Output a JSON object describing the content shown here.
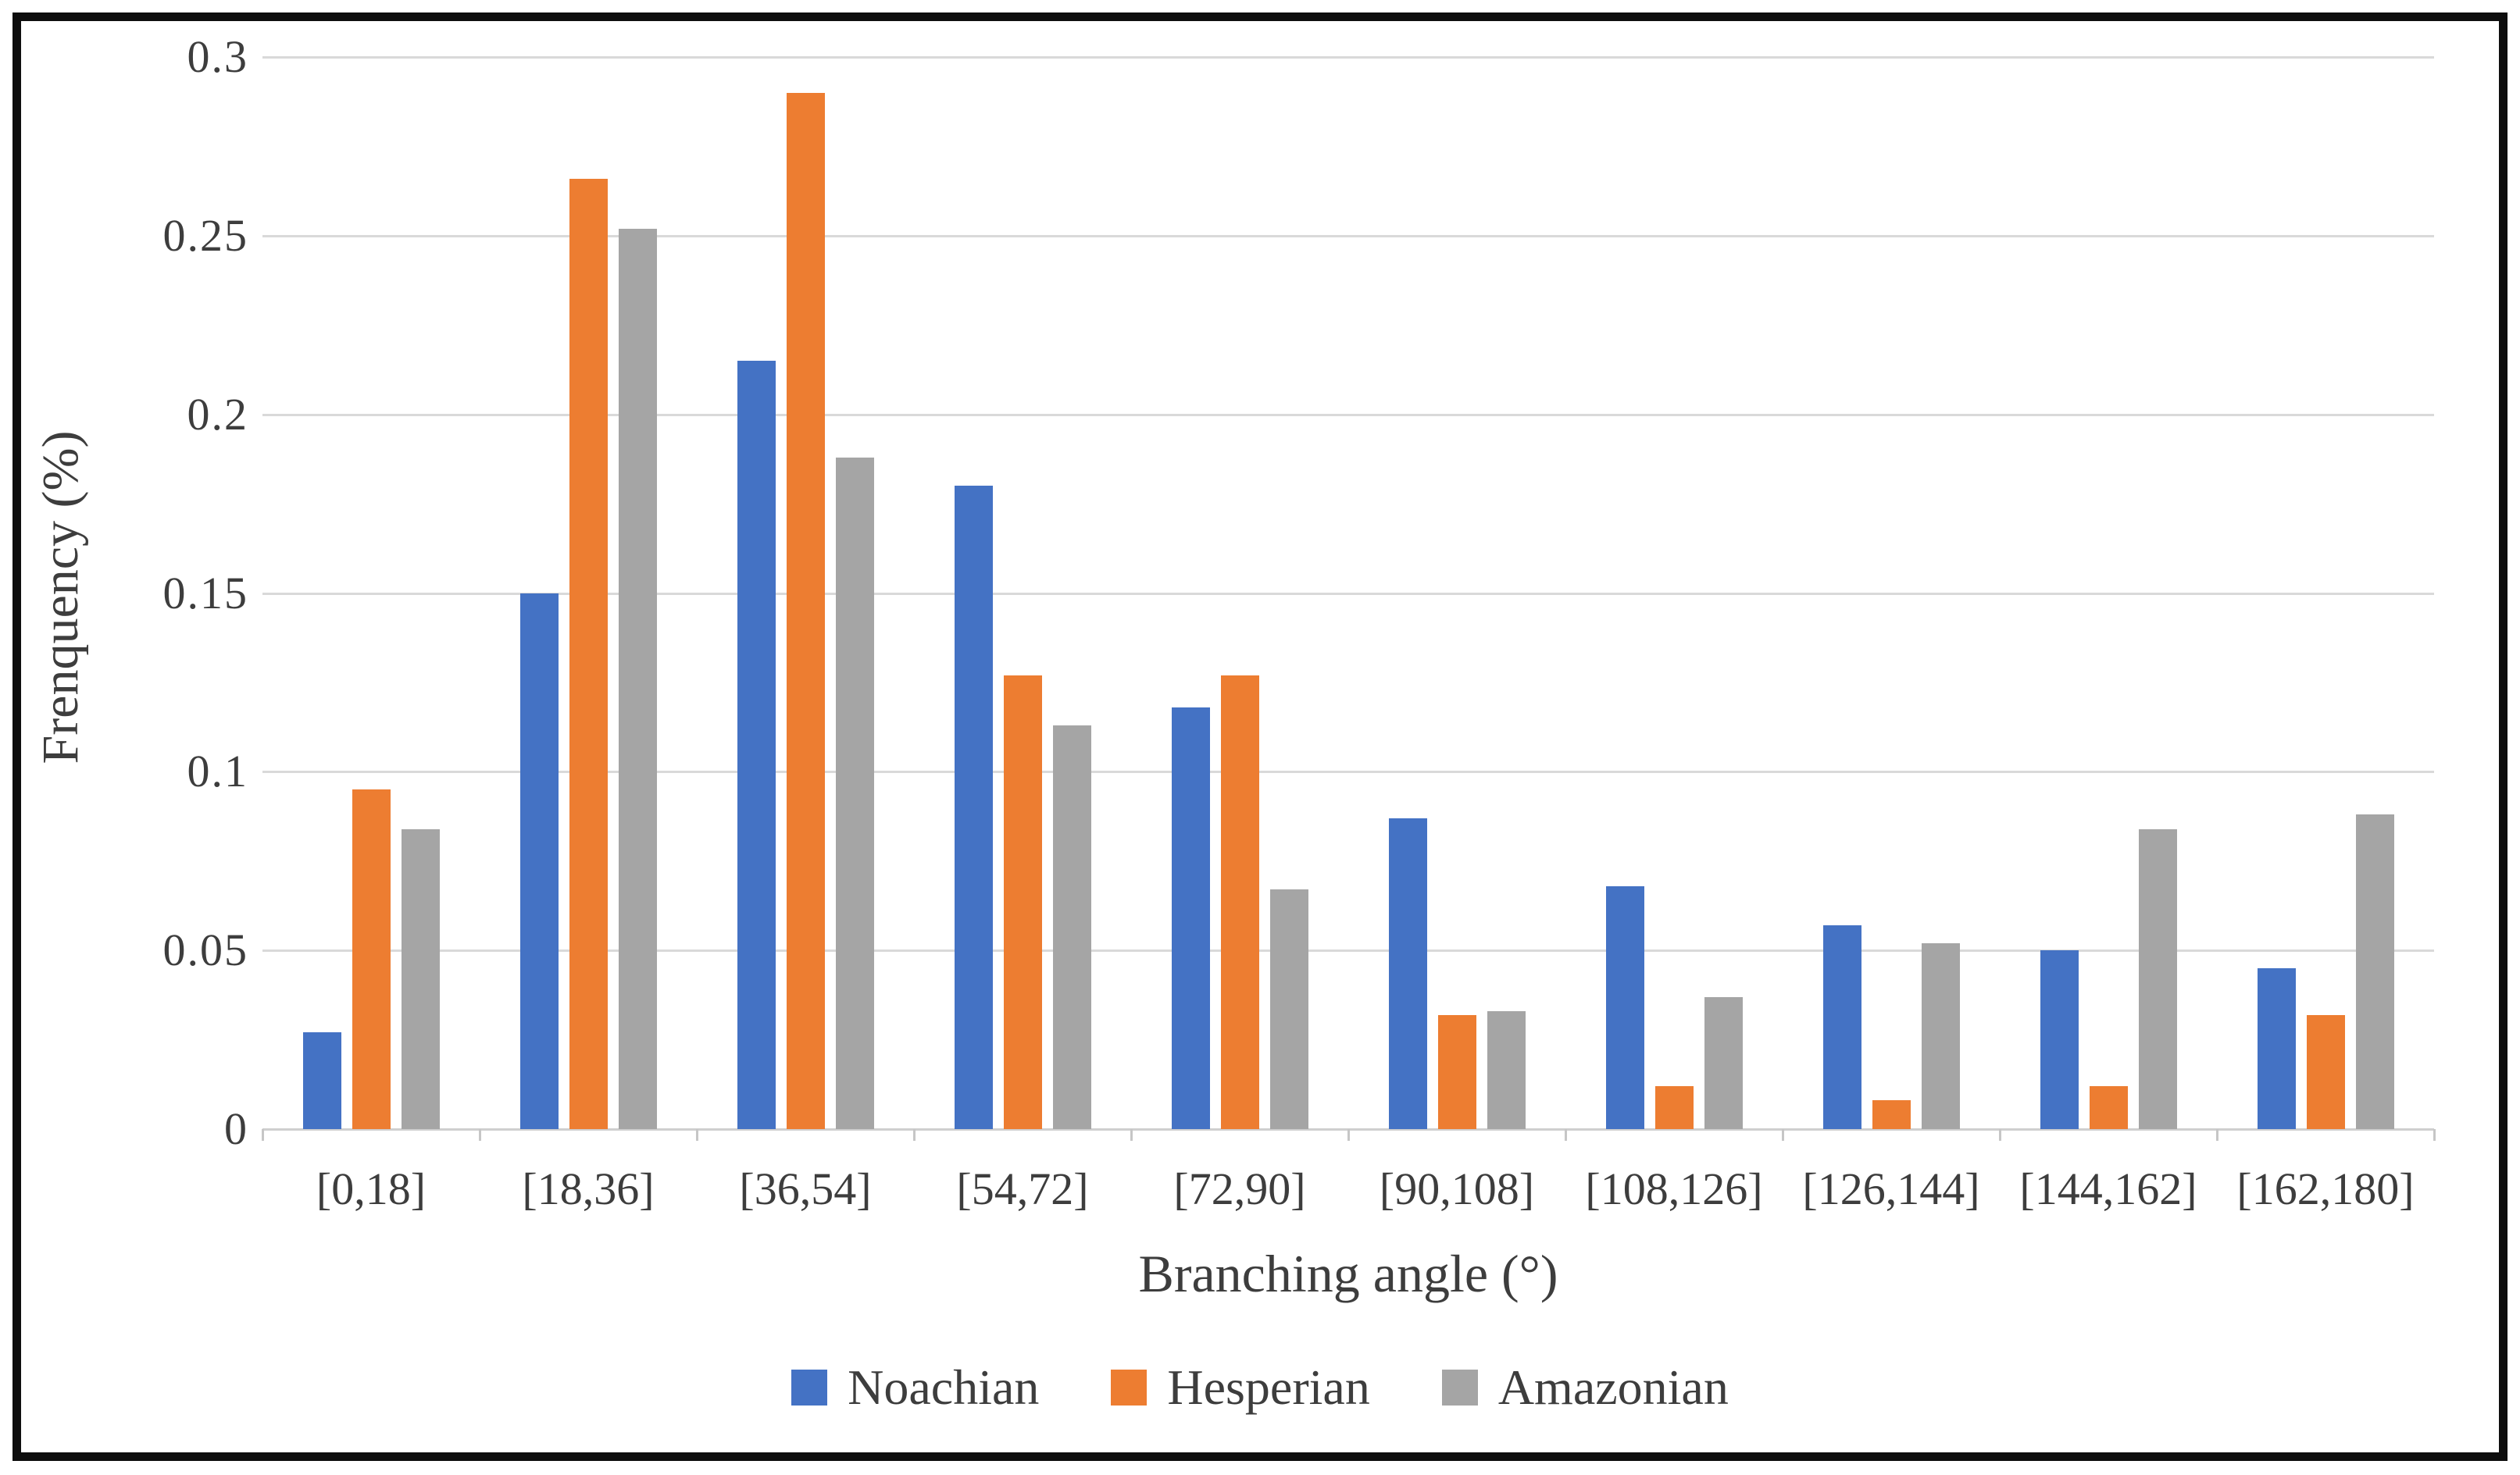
{
  "chart_data": {
    "type": "bar",
    "title": "",
    "xlabel": "Branching angle (°)",
    "ylabel": "Frenquency (%)",
    "ylim": [
      0,
      0.3
    ],
    "grid": true,
    "legend_position": "bottom",
    "yticks": [
      {
        "value": 0,
        "label": "0"
      },
      {
        "value": 0.05,
        "label": "0.05"
      },
      {
        "value": 0.1,
        "label": "0.1"
      },
      {
        "value": 0.15,
        "label": "0.15"
      },
      {
        "value": 0.2,
        "label": "0.2"
      },
      {
        "value": 0.25,
        "label": "0.25"
      },
      {
        "value": 0.3,
        "label": "0.3"
      }
    ],
    "categories": [
      "[0,18]",
      "[18,36]",
      "[36,54]",
      "[54,72]",
      "[72,90]",
      "[90,108]",
      "[108,126]",
      "[126,144]",
      "[144,162]",
      "[162,180]"
    ],
    "series": [
      {
        "name": "Noachian",
        "color": "#4472C4",
        "values": [
          0.027,
          0.15,
          0.215,
          0.18,
          0.118,
          0.087,
          0.068,
          0.057,
          0.05,
          0.045
        ]
      },
      {
        "name": "Hesperian",
        "color": "#ED7D31",
        "values": [
          0.095,
          0.266,
          0.29,
          0.127,
          0.127,
          0.032,
          0.012,
          0.008,
          0.012,
          0.032
        ]
      },
      {
        "name": "Amazonian",
        "color": "#A5A5A5",
        "values": [
          0.084,
          0.252,
          0.188,
          0.113,
          0.067,
          0.033,
          0.037,
          0.052,
          0.084,
          0.088
        ]
      }
    ],
    "colors": {
      "gridline": "#d9d9d9",
      "axis_line": "#cfcfcf",
      "text": "#3d3d3d",
      "frame_border": "#0e0e0e",
      "background": "#ffffff"
    }
  }
}
